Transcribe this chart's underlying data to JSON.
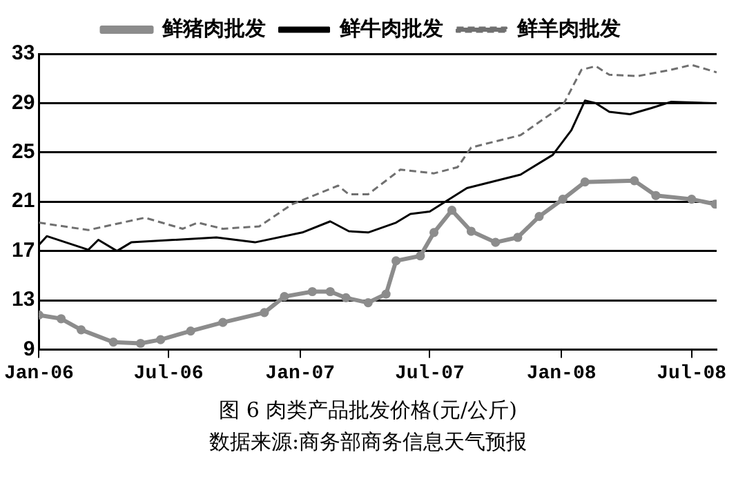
{
  "chart_data": {
    "type": "line",
    "title": "图 6  肉类产品批发价格(元/公斤)",
    "annotations": [
      "数据来源:商务部商务信息天气预报"
    ],
    "xlim": [
      "2006-01-01",
      "2008-08-05"
    ],
    "xticks": [
      {
        "value": "2006-01-01",
        "label": "Jan-06"
      },
      {
        "value": "2006-07-01",
        "label": "Jul-06"
      },
      {
        "value": "2007-01-01",
        "label": "Jan-07"
      },
      {
        "value": "2007-07-01",
        "label": "Jul-07"
      },
      {
        "value": "2008-01-01",
        "label": "Jan-08"
      },
      {
        "value": "2008-07-01",
        "label": "Jul-08"
      }
    ],
    "ylim": [
      9,
      33
    ],
    "yticks": [
      9,
      13,
      17,
      21,
      25,
      29,
      33
    ],
    "grid": "y",
    "legend": "top",
    "series": [
      {
        "name": "鲜猪肉批发",
        "color": "#8c8c8c",
        "marker": "circle",
        "line_style": "solid",
        "x": [
          "2006-01-01",
          "2006-02-01",
          "2006-03-01",
          "2006-04-15",
          "2006-05-23",
          "2006-06-20",
          "2006-08-01",
          "2006-09-15",
          "2006-11-12",
          "2006-12-10",
          "2007-01-18",
          "2007-02-12",
          "2007-03-06",
          "2007-04-06",
          "2007-05-01",
          "2007-05-15",
          "2007-06-18",
          "2007-07-07",
          "2007-08-01",
          "2007-08-28",
          "2007-10-01",
          "2007-11-01",
          "2007-12-01",
          "2008-01-03",
          "2008-02-03",
          "2008-04-12",
          "2008-05-12",
          "2008-07-01",
          "2008-08-03"
        ],
        "values": [
          11.8,
          11.5,
          10.6,
          9.6,
          9.5,
          9.8,
          10.5,
          11.2,
          12.0,
          13.3,
          13.7,
          13.7,
          13.2,
          12.8,
          13.5,
          16.2,
          16.6,
          18.5,
          20.3,
          18.6,
          17.7,
          18.1,
          19.8,
          21.2,
          22.6,
          22.7,
          21.5,
          21.2,
          20.8
        ]
      },
      {
        "name": "鲜牛肉批发",
        "color": "#000000",
        "marker": "none",
        "line_style": "solid",
        "x": [
          "2006-01-01",
          "2006-01-12",
          "2006-03-11",
          "2006-03-25",
          "2006-04-20",
          "2006-05-10",
          "2006-09-06",
          "2006-10-30",
          "2007-01-04",
          "2007-02-12",
          "2007-03-10",
          "2007-04-06",
          "2007-05-15",
          "2007-06-04",
          "2007-07-01",
          "2007-08-22",
          "2007-11-05",
          "2007-12-20",
          "2008-01-15",
          "2008-02-03",
          "2008-02-18",
          "2008-03-08",
          "2008-04-06",
          "2008-05-06",
          "2008-06-02",
          "2008-08-01"
        ],
        "values": [
          17.5,
          18.2,
          17.1,
          17.9,
          17.0,
          17.7,
          18.1,
          17.7,
          18.5,
          19.4,
          18.6,
          18.5,
          19.3,
          20.0,
          20.2,
          22.1,
          23.2,
          24.8,
          26.8,
          29.2,
          29.0,
          28.3,
          28.1,
          28.6,
          29.1,
          29.0
        ]
      },
      {
        "name": "鲜羊肉批发",
        "color": "#707070",
        "marker": "none",
        "line_style": "dashed",
        "x": [
          "2006-01-01",
          "2006-03-11",
          "2006-05-29",
          "2006-07-21",
          "2006-08-11",
          "2006-09-15",
          "2006-11-05",
          "2006-12-21",
          "2007-02-23",
          "2007-03-10",
          "2007-04-06",
          "2007-05-21",
          "2007-07-07",
          "2007-08-09",
          "2007-08-28",
          "2007-11-05",
          "2008-01-03",
          "2008-01-29",
          "2008-02-18",
          "2008-03-08",
          "2008-04-17",
          "2008-06-02",
          "2008-07-01",
          "2008-08-05"
        ],
        "values": [
          19.3,
          18.7,
          19.7,
          18.8,
          19.3,
          18.8,
          19.0,
          20.8,
          22.3,
          21.6,
          21.6,
          23.6,
          23.3,
          23.8,
          25.4,
          26.4,
          28.8,
          31.7,
          32.0,
          31.3,
          31.2,
          31.7,
          32.1,
          31.5
        ]
      }
    ]
  }
}
